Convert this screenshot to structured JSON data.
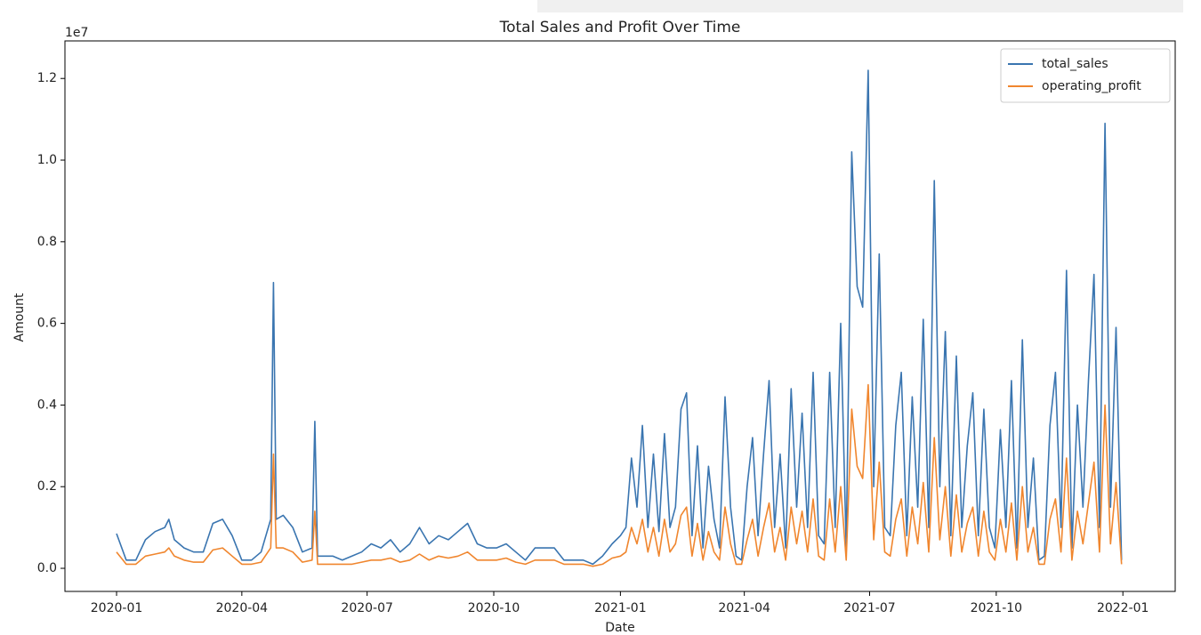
{
  "chart_data": {
    "type": "line",
    "title": "Total Sales and Profit Over Time",
    "xlabel": "Date",
    "ylabel": "Amount",
    "y_offset_label": "1e7",
    "legend": "upper right",
    "xlim": [
      -37.5,
      769
    ],
    "xticks": [
      {
        "value": 0,
        "label": "2020-01"
      },
      {
        "value": 91,
        "label": "2020-04"
      },
      {
        "value": 182,
        "label": "2020-07"
      },
      {
        "value": 274,
        "label": "2020-10"
      },
      {
        "value": 366,
        "label": "2021-01"
      },
      {
        "value": 456,
        "label": "2021-04"
      },
      {
        "value": 547,
        "label": "2021-07"
      },
      {
        "value": 639,
        "label": "2021-10"
      },
      {
        "value": 731,
        "label": "2022-01"
      }
    ],
    "ylim": [
      -0.0566,
      1.292
    ],
    "yticks": [
      {
        "value": 0,
        "label": "0.0"
      },
      0.2,
      0.4,
      0.6,
      0.8,
      {
        "value": 1,
        "label": "1.0"
      },
      1.2
    ],
    "x": [
      0,
      7,
      14,
      21,
      28,
      35,
      38,
      42,
      49,
      56,
      63,
      70,
      77,
      84,
      91,
      98,
      105,
      112,
      114,
      116,
      121,
      128,
      135,
      142,
      144,
      146,
      150,
      157,
      164,
      171,
      178,
      185,
      192,
      199,
      206,
      213,
      220,
      227,
      234,
      241,
      248,
      255,
      262,
      269,
      276,
      283,
      290,
      297,
      304,
      311,
      318,
      325,
      332,
      339,
      346,
      353,
      360,
      366,
      370,
      374,
      378,
      382,
      386,
      390,
      394,
      398,
      402,
      406,
      410,
      414,
      418,
      422,
      426,
      430,
      434,
      438,
      442,
      446,
      450,
      454,
      458,
      462,
      466,
      470,
      474,
      478,
      482,
      486,
      490,
      494,
      498,
      502,
      506,
      510,
      514,
      518,
      522,
      526,
      530,
      534,
      538,
      542,
      546,
      550,
      554,
      558,
      562,
      566,
      570,
      574,
      578,
      582,
      586,
      590,
      594,
      598,
      602,
      606,
      610,
      614,
      618,
      622,
      626,
      630,
      634,
      638,
      642,
      646,
      650,
      654,
      658,
      662,
      666,
      670,
      674,
      678,
      682,
      686,
      690,
      694,
      698,
      702,
      706,
      710,
      714,
      718,
      722,
      726,
      730
    ],
    "series": [
      {
        "name": "total_sales",
        "color": "#3a75b0",
        "values": [
          0.085,
          0.02,
          0.02,
          0.07,
          0.09,
          0.1,
          0.12,
          0.07,
          0.05,
          0.04,
          0.04,
          0.11,
          0.12,
          0.08,
          0.02,
          0.02,
          0.04,
          0.12,
          0.7,
          0.12,
          0.13,
          0.1,
          0.04,
          0.05,
          0.36,
          0.03,
          0.03,
          0.03,
          0.02,
          0.03,
          0.04,
          0.06,
          0.05,
          0.07,
          0.04,
          0.06,
          0.1,
          0.06,
          0.08,
          0.07,
          0.09,
          0.11,
          0.06,
          0.05,
          0.05,
          0.06,
          0.04,
          0.02,
          0.05,
          0.05,
          0.05,
          0.02,
          0.02,
          0.02,
          0.01,
          0.03,
          0.06,
          0.08,
          0.1,
          0.27,
          0.15,
          0.35,
          0.1,
          0.28,
          0.09,
          0.33,
          0.1,
          0.15,
          0.39,
          0.43,
          0.08,
          0.3,
          0.05,
          0.25,
          0.12,
          0.05,
          0.42,
          0.15,
          0.03,
          0.02,
          0.2,
          0.32,
          0.08,
          0.28,
          0.46,
          0.1,
          0.28,
          0.05,
          0.44,
          0.15,
          0.38,
          0.1,
          0.48,
          0.08,
          0.06,
          0.48,
          0.1,
          0.6,
          0.05,
          1.02,
          0.69,
          0.64,
          1.22,
          0.2,
          0.77,
          0.1,
          0.08,
          0.35,
          0.48,
          0.08,
          0.42,
          0.15,
          0.61,
          0.1,
          0.95,
          0.2,
          0.58,
          0.08,
          0.52,
          0.1,
          0.3,
          0.43,
          0.08,
          0.39,
          0.1,
          0.05,
          0.34,
          0.1,
          0.46,
          0.05,
          0.56,
          0.1,
          0.27,
          0.02,
          0.03,
          0.35,
          0.48,
          0.1,
          0.73,
          0.05,
          0.4,
          0.15,
          0.46,
          0.72,
          0.1,
          1.09,
          0.15,
          0.59,
          0.02
        ]
      },
      {
        "name": "operating_profit",
        "color": "#f0862e",
        "values": [
          0.04,
          0.01,
          0.01,
          0.03,
          0.035,
          0.04,
          0.05,
          0.03,
          0.02,
          0.015,
          0.015,
          0.045,
          0.05,
          0.03,
          0.01,
          0.01,
          0.015,
          0.05,
          0.28,
          0.05,
          0.05,
          0.04,
          0.015,
          0.02,
          0.14,
          0.01,
          0.01,
          0.01,
          0.01,
          0.01,
          0.015,
          0.02,
          0.02,
          0.025,
          0.015,
          0.02,
          0.035,
          0.02,
          0.03,
          0.025,
          0.03,
          0.04,
          0.02,
          0.02,
          0.02,
          0.025,
          0.015,
          0.01,
          0.02,
          0.02,
          0.02,
          0.01,
          0.01,
          0.01,
          0.005,
          0.01,
          0.025,
          0.03,
          0.04,
          0.1,
          0.06,
          0.12,
          0.04,
          0.1,
          0.03,
          0.12,
          0.04,
          0.06,
          0.13,
          0.15,
          0.03,
          0.11,
          0.02,
          0.09,
          0.04,
          0.02,
          0.15,
          0.06,
          0.01,
          0.01,
          0.07,
          0.12,
          0.03,
          0.1,
          0.16,
          0.04,
          0.1,
          0.02,
          0.15,
          0.06,
          0.14,
          0.04,
          0.17,
          0.03,
          0.02,
          0.17,
          0.04,
          0.2,
          0.02,
          0.39,
          0.25,
          0.22,
          0.45,
          0.07,
          0.26,
          0.04,
          0.03,
          0.12,
          0.17,
          0.03,
          0.15,
          0.06,
          0.21,
          0.04,
          0.32,
          0.07,
          0.2,
          0.03,
          0.18,
          0.04,
          0.11,
          0.15,
          0.03,
          0.14,
          0.04,
          0.02,
          0.12,
          0.04,
          0.16,
          0.02,
          0.2,
          0.04,
          0.1,
          0.01,
          0.01,
          0.12,
          0.17,
          0.04,
          0.27,
          0.02,
          0.14,
          0.06,
          0.16,
          0.26,
          0.04,
          0.4,
          0.06,
          0.21,
          0.01
        ]
      }
    ]
  }
}
